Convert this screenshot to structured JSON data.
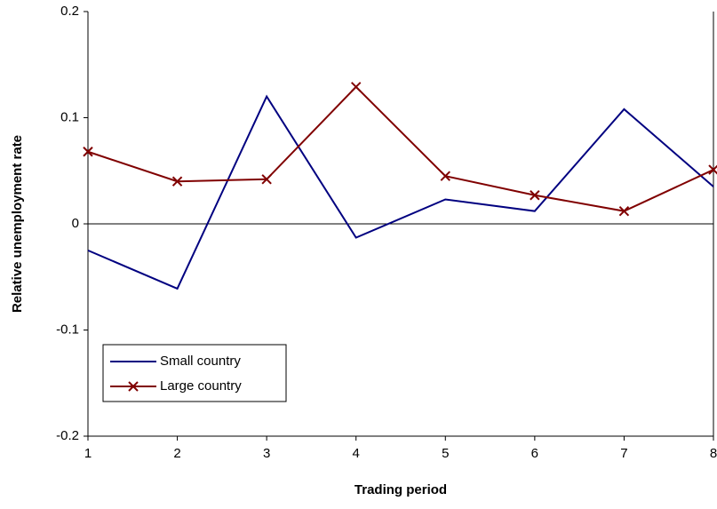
{
  "chart_data": {
    "type": "line",
    "x_label": "Trading period",
    "y_label": "Relative unemployment rate",
    "x": [
      1,
      2,
      3,
      4,
      5,
      6,
      7,
      8
    ],
    "xlim": [
      1,
      8
    ],
    "xticks": [
      1,
      2,
      3,
      4,
      5,
      6,
      7,
      8
    ],
    "ylim": [
      -0.2,
      0.2
    ],
    "yticks": [
      0.2,
      0.1,
      0,
      -0.1,
      -0.2
    ],
    "series": [
      {
        "name": "Small country",
        "color": "#000080",
        "marker": "none",
        "values": [
          -0.025,
          -0.061,
          0.12,
          -0.013,
          0.023,
          0.012,
          0.108,
          0.035
        ]
      },
      {
        "name": "Large country",
        "color": "#800000",
        "marker": "x",
        "values": [
          0.068,
          0.04,
          0.042,
          0.129,
          0.045,
          0.027,
          0.012,
          0.051
        ]
      }
    ]
  }
}
